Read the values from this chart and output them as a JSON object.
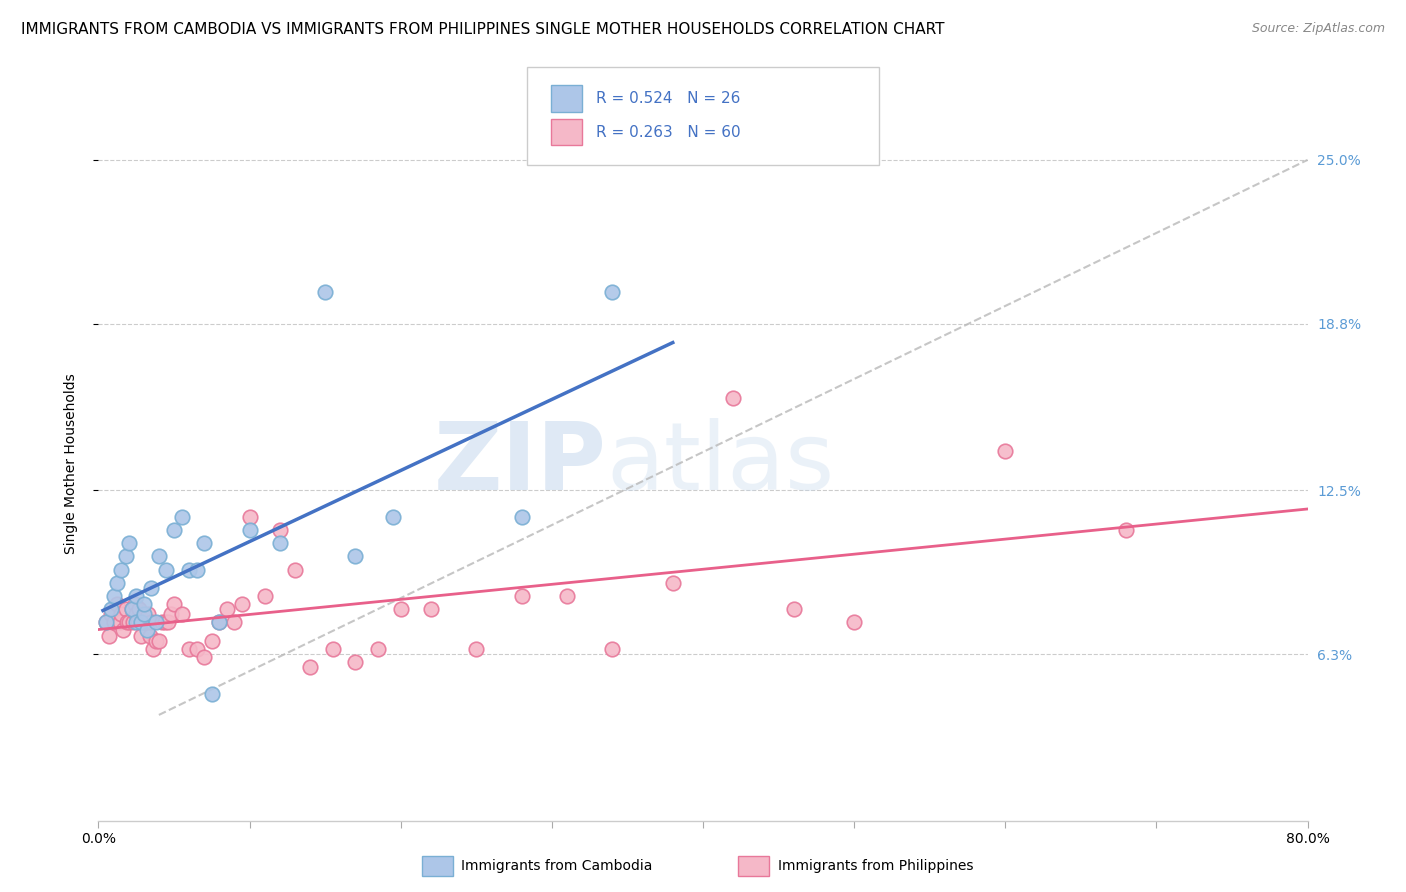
{
  "title": "IMMIGRANTS FROM CAMBODIA VS IMMIGRANTS FROM PHILIPPINES SINGLE MOTHER HOUSEHOLDS CORRELATION CHART",
  "source": "Source: ZipAtlas.com",
  "ylabel": "Single Mother Households",
  "xlim": [
    0.0,
    0.8
  ],
  "ylim": [
    0.0,
    0.27
  ],
  "yticks": [
    0.063,
    0.125,
    0.188,
    0.25
  ],
  "ytick_labels": [
    "6.3%",
    "12.5%",
    "18.8%",
    "25.0%"
  ],
  "xticks": [
    0.0,
    0.1,
    0.2,
    0.3,
    0.4,
    0.5,
    0.6,
    0.7,
    0.8
  ],
  "xtick_labels": [
    "0.0%",
    "",
    "",
    "",
    "",
    "",
    "",
    "",
    "80.0%"
  ],
  "cambodia_color": "#adc6e8",
  "philippines_color": "#f5b8c8",
  "cambodia_edge": "#7aafd4",
  "philippines_edge": "#e8789a",
  "trend_cambodia_color": "#4472c4",
  "trend_philippines_color": "#e8608a",
  "diagonal_color": "#b8b8b8",
  "legend_label1": "Immigrants from Cambodia",
  "legend_label2": "Immigrants from Philippines",
  "watermark_zip": "ZIP",
  "watermark_atlas": "atlas",
  "title_fontsize": 11,
  "axis_label_fontsize": 10,
  "tick_fontsize": 10,
  "right_tick_color": "#5b9bd5",
  "cambodia_x": [
    0.005,
    0.008,
    0.01,
    0.012,
    0.015,
    0.018,
    0.02,
    0.022,
    0.025,
    0.025,
    0.028,
    0.03,
    0.03,
    0.032,
    0.035,
    0.038,
    0.04,
    0.045,
    0.05,
    0.055,
    0.06,
    0.065,
    0.07,
    0.075,
    0.08,
    0.1,
    0.12,
    0.15,
    0.17,
    0.195,
    0.28,
    0.34
  ],
  "cambodia_y": [
    0.075,
    0.08,
    0.085,
    0.09,
    0.095,
    0.1,
    0.105,
    0.08,
    0.075,
    0.085,
    0.075,
    0.078,
    0.082,
    0.072,
    0.088,
    0.075,
    0.1,
    0.095,
    0.11,
    0.115,
    0.095,
    0.095,
    0.105,
    0.048,
    0.075,
    0.11,
    0.105,
    0.2,
    0.1,
    0.115,
    0.115,
    0.2
  ],
  "philippines_x": [
    0.005,
    0.007,
    0.008,
    0.01,
    0.012,
    0.014,
    0.015,
    0.016,
    0.018,
    0.019,
    0.02,
    0.022,
    0.023,
    0.024,
    0.025,
    0.026,
    0.027,
    0.028,
    0.03,
    0.032,
    0.033,
    0.034,
    0.035,
    0.036,
    0.038,
    0.04,
    0.042,
    0.044,
    0.046,
    0.048,
    0.05,
    0.055,
    0.06,
    0.065,
    0.07,
    0.075,
    0.08,
    0.085,
    0.09,
    0.095,
    0.1,
    0.11,
    0.12,
    0.13,
    0.14,
    0.155,
    0.17,
    0.185,
    0.2,
    0.22,
    0.25,
    0.28,
    0.31,
    0.34,
    0.38,
    0.42,
    0.46,
    0.5,
    0.6,
    0.68
  ],
  "philippines_y": [
    0.075,
    0.07,
    0.078,
    0.075,
    0.082,
    0.075,
    0.078,
    0.072,
    0.08,
    0.075,
    0.075,
    0.08,
    0.075,
    0.082,
    0.078,
    0.075,
    0.08,
    0.07,
    0.075,
    0.075,
    0.078,
    0.07,
    0.075,
    0.065,
    0.068,
    0.068,
    0.075,
    0.075,
    0.075,
    0.078,
    0.082,
    0.078,
    0.065,
    0.065,
    0.062,
    0.068,
    0.075,
    0.08,
    0.075,
    0.082,
    0.115,
    0.085,
    0.11,
    0.095,
    0.058,
    0.065,
    0.06,
    0.065,
    0.08,
    0.08,
    0.065,
    0.085,
    0.085,
    0.065,
    0.09,
    0.16,
    0.08,
    0.075,
    0.14,
    0.11
  ]
}
